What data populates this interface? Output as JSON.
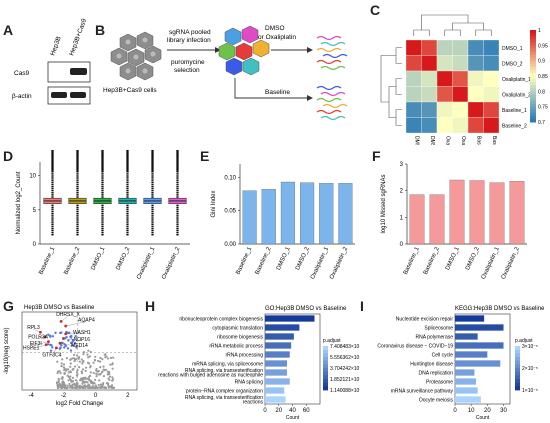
{
  "panels": [
    "A",
    "B",
    "C",
    "D",
    "E",
    "F",
    "G",
    "H",
    "I"
  ],
  "panelA": {
    "lanes": [
      "Hep3B",
      "Hep3B+Cas9"
    ],
    "rows": [
      "Cas9",
      "β-actin"
    ]
  },
  "panelB": {
    "cells_label": "Hep3B+Cas9 cells",
    "step1": "sgRNA pooled",
    "step2": "library infection",
    "step3": "puromycine",
    "step4": "selection",
    "treatment": "DMSO",
    "treatment2": "or Oxaliplatin",
    "baseline": "Baseline"
  },
  "panelC": {
    "rows": [
      "DMSO_1",
      "DMSO_2",
      "Oxaliplatin_1",
      "Oxaliplatin_2",
      "Baseline_1",
      "Baseline_2"
    ],
    "cols": [
      "DMSO_1",
      "DMSO_2",
      "Oxaliplatin_1",
      "Oxaliplatin_2",
      "Baseline_1",
      "Baseline_2"
    ],
    "matrix": [
      [
        1.0,
        0.97,
        0.8,
        0.8,
        0.72,
        0.71
      ],
      [
        0.97,
        1.0,
        0.82,
        0.81,
        0.73,
        0.72
      ],
      [
        0.8,
        0.82,
        1.0,
        0.96,
        0.84,
        0.85
      ],
      [
        0.8,
        0.81,
        0.96,
        1.0,
        0.85,
        0.84
      ],
      [
        0.72,
        0.73,
        0.84,
        0.85,
        1.0,
        0.97
      ],
      [
        0.71,
        0.72,
        0.85,
        0.84,
        0.97,
        1.0
      ]
    ],
    "scale_ticks": [
      "1",
      "0.95",
      "0.9",
      "0.85",
      "0.8",
      "0.75",
      "0.7"
    ]
  },
  "chart_data": [
    {
      "id": "D",
      "type": "box",
      "ylabel": "Normalized log2_Count",
      "categories": [
        "Baseline_1",
        "Baseline_2",
        "DMSO_1",
        "DMSO_2",
        "Oxaliplatin_1",
        "Oxaliplatin_2"
      ],
      "colors": [
        "#f07c74",
        "#b7a01a",
        "#28b449",
        "#1fb6b4",
        "#5e9ef0",
        "#e35fd2"
      ],
      "medians": [
        6.3,
        6.3,
        6.3,
        6.3,
        6.3,
        6.3
      ],
      "q1": [
        5.9,
        5.9,
        5.9,
        5.9,
        5.9,
        5.9
      ],
      "q3": [
        6.7,
        6.7,
        6.7,
        6.7,
        6.7,
        6.7
      ],
      "whisker_low": [
        4.6,
        4.6,
        4.6,
        4.6,
        4.6,
        4.6
      ],
      "whisker_high": [
        8.0,
        8.0,
        8.0,
        8.0,
        8.0,
        8.0
      ],
      "outlier_low": 1.2,
      "outlier_high": 10.6,
      "ylim": [
        0,
        12
      ],
      "yticks": [
        0,
        5,
        10
      ]
    },
    {
      "id": "E",
      "type": "bar",
      "ylabel": "Gini Index",
      "categories": [
        "Baseline_1",
        "Baseline_2",
        "DMSO_1",
        "DMSO_2",
        "Oxaliplatin_1",
        "Oxaliplatin_2"
      ],
      "values": [
        0.08,
        0.082,
        0.093,
        0.092,
        0.091,
        0.091
      ],
      "ylim": [
        0,
        0.12
      ],
      "yticks": [
        "0.00",
        "0.05",
        "0.10"
      ],
      "color": "#7cb4ec"
    },
    {
      "id": "F",
      "type": "bar",
      "ylabel": "log10 Missed sgRNAs",
      "categories": [
        "Baseline_1",
        "Baseline_2",
        "DMSO_1",
        "DMSO_2",
        "Oxaliplatin_1",
        "Oxaliplatin_2"
      ],
      "values": [
        1.85,
        1.85,
        2.4,
        2.38,
        2.3,
        2.35
      ],
      "ylim": [
        0,
        3
      ],
      "yticks": [
        "0",
        "1",
        "2",
        "3"
      ],
      "color": "#f59a9a"
    },
    {
      "id": "G",
      "type": "scatter",
      "title": "Hep3B DMSO vs Baseline",
      "xlabel": "log2 Fold Change",
      "ylabel": "-log10(neg score)",
      "xticks": [
        "-4",
        "-2",
        "0",
        "2"
      ],
      "labels": [
        "DHRSX_X",
        "AQAP4",
        "RPL3",
        "WASH1",
        "POLR3A",
        "NOP16",
        "EIF3I",
        "MED14",
        "HSPE1",
        "GTF3C4"
      ]
    },
    {
      "id": "H",
      "type": "bar",
      "title": "GO:Hep3B DMSO vs Baseline",
      "xlabel": "Count",
      "legend_title": "p.adjust",
      "legend_ticks": [
        "7.408483×10⁻²²",
        "5.556362×10⁻¹⁰",
        "3.704242×10⁻¹⁰",
        "1.852121×10⁻¹⁰",
        "1.140088×10⁻²⁰"
      ],
      "xticks": [
        "0",
        "20",
        "40",
        "60"
      ],
      "categories": [
        "ribonucleoprotein complex biogenesis",
        "cytoplasmic translation",
        "ribosome biogenesis",
        "rRNA metabolic process",
        "rRNA processing",
        "mRNA splicing, via spliceosome",
        "RNA splicing, via transesterification reactions with bulged adenosine as nucleophile",
        "RNA splicing",
        "protein−RNA complex organization",
        "RNA splicing, via transesterification reactions"
      ],
      "values": [
        72,
        50,
        42,
        38,
        36,
        32,
        32,
        36,
        28,
        30
      ],
      "xlim": [
        0,
        80
      ]
    },
    {
      "id": "I",
      "type": "bar",
      "title": "KEGG:Hep3B DMSO vs Baseline",
      "xlabel": "Count",
      "legend_title": "p.adjust",
      "legend_ticks": [
        "3×10⁻⁵",
        "2×10⁻⁵",
        "1×10⁻⁵"
      ],
      "xticks": [
        "0",
        "10",
        "20",
        "30"
      ],
      "categories": [
        "Nucleotide excision repair",
        "Spliceosome",
        "RNA polymerase",
        "Coronavirus disease − COVID−19",
        "Cell cycle",
        "Huntington disease",
        "DNA replication",
        "Proteasome",
        "mRNA surveillance pathway",
        "Oocyte meiosis"
      ],
      "values": [
        18,
        30,
        14,
        30,
        20,
        28,
        12,
        13,
        14,
        16
      ],
      "xlim": [
        0,
        34
      ]
    }
  ]
}
